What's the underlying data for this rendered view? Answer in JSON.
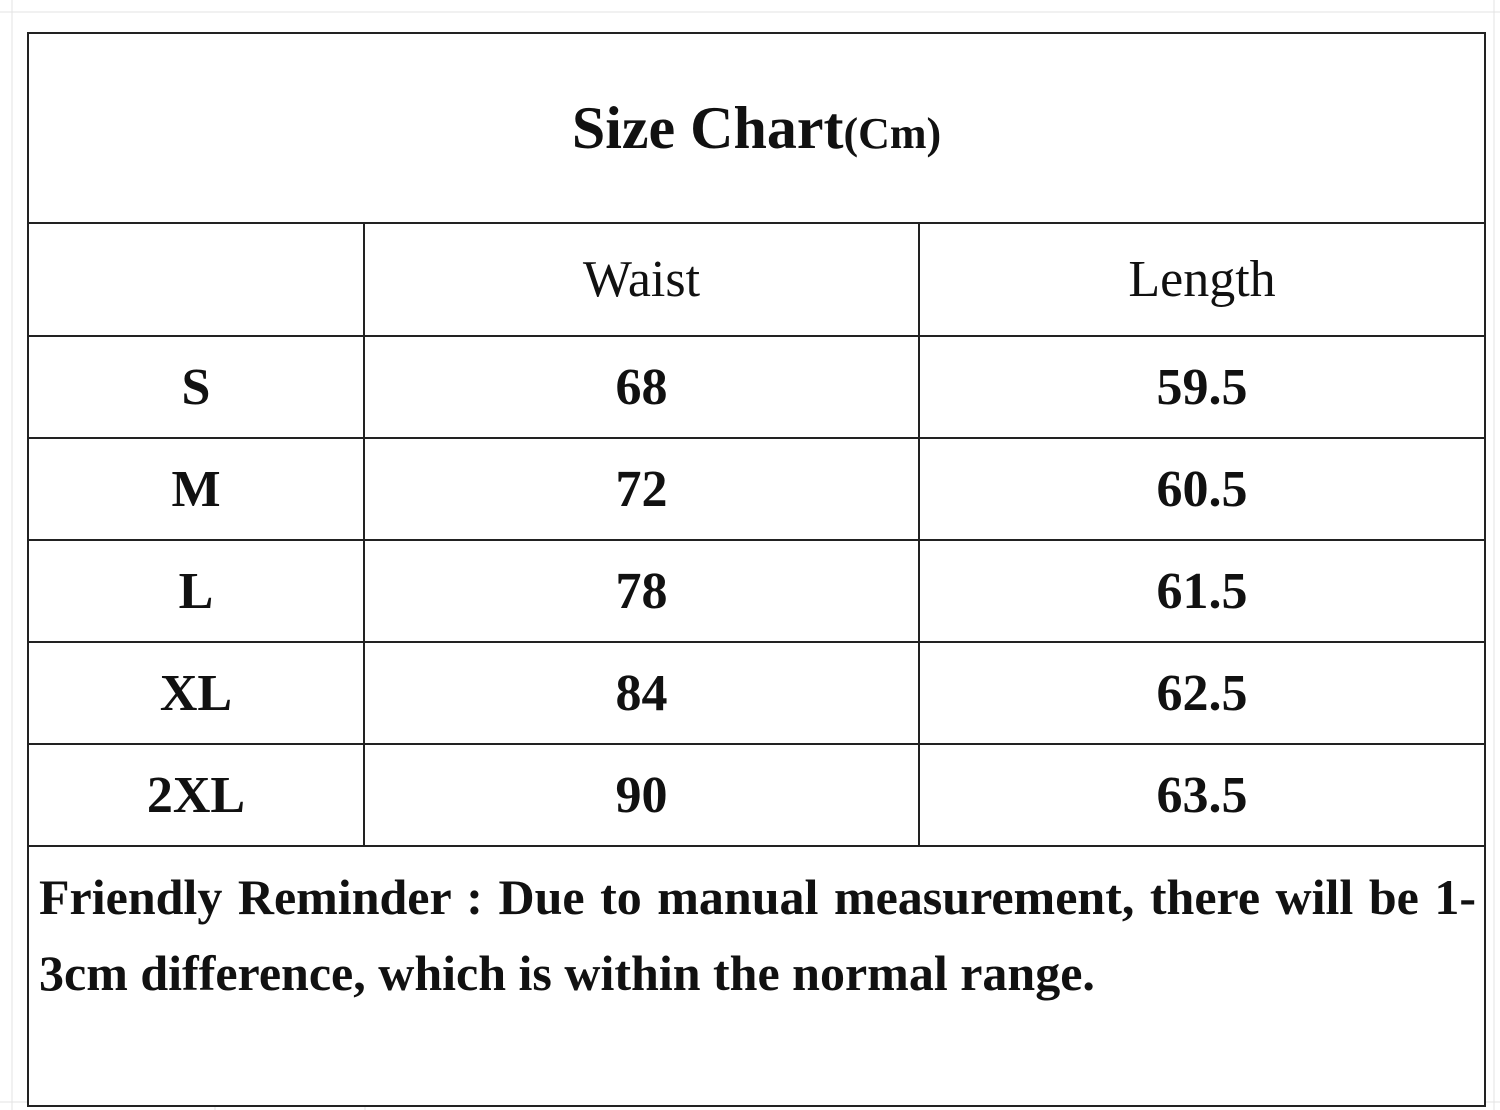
{
  "title": "Size Chart",
  "title_unit": "(Cm)",
  "table": {
    "columns": [
      "Waist",
      "Length"
    ],
    "rows": [
      [
        "S",
        68,
        59.5
      ],
      [
        "M",
        72,
        60.5
      ],
      [
        "L",
        78,
        61.5
      ],
      [
        "XL",
        84,
        62.5
      ],
      [
        "2XL",
        90,
        63.5
      ]
    ]
  },
  "note": "Friendly Reminder : Due to manual measurement, there will be 1- 3cm difference, which is within the normal range."
}
